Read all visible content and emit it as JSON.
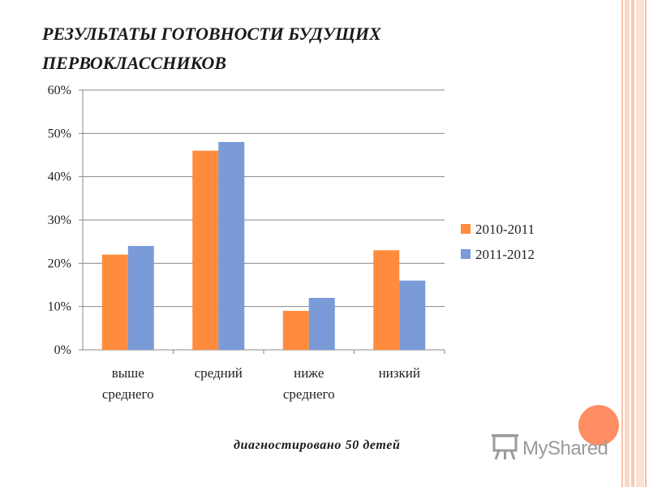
{
  "slide": {
    "title_line1": "РЕЗУЛЬТАТЫ ГОТОВНОСТИ БУДУЩИХ",
    "title_line2": "ПЕРВОКЛАССНИКОВ",
    "caption": "диагностировано 50 детей",
    "accent_color": "#ff8d63",
    "watermark": "MyShared",
    "watermark_icon": "presentation-board-icon"
  },
  "chart_data": {
    "type": "bar",
    "categories": [
      [
        "выше",
        "среднего"
      ],
      [
        "средний"
      ],
      [
        "ниже",
        "среднего"
      ],
      [
        "низкий"
      ]
    ],
    "series": [
      {
        "name": "2010-2011",
        "values": [
          22,
          46,
          9,
          23
        ],
        "color": "#ff8c3c"
      },
      {
        "name": "2011-2012",
        "values": [
          24,
          48,
          12,
          16
        ],
        "color": "#7a9ad8"
      }
    ],
    "yticks": [
      "0%",
      "10%",
      "20%",
      "30%",
      "40%",
      "50%",
      "60%"
    ],
    "ylim": [
      0,
      60
    ],
    "grid": true,
    "legend_position": "right"
  }
}
